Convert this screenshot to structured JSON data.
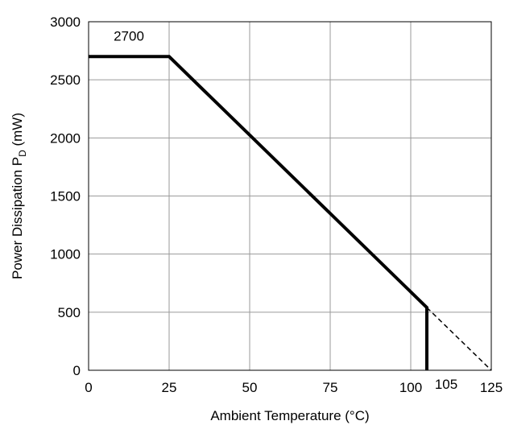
{
  "chart_data": {
    "type": "line",
    "title": "",
    "xlabel": "Ambient Temperature (°C)",
    "ylabel_main": "Power Dissipation P",
    "ylabel_sub": "D",
    "ylabel_unit": " (mW)",
    "xlim": [
      0,
      125
    ],
    "ylim": [
      0,
      3000
    ],
    "xticks": [
      0,
      25,
      50,
      75,
      100,
      125
    ],
    "yticks": [
      0,
      500,
      1000,
      1500,
      2000,
      2500,
      3000
    ],
    "grid": true,
    "legend": "none",
    "series": [
      {
        "style": "solid",
        "color": "#000000",
        "points": [
          [
            0,
            2700
          ],
          [
            25,
            2700
          ],
          [
            105,
            540
          ],
          [
            105,
            0
          ]
        ]
      },
      {
        "style": "dashed",
        "color": "#000000",
        "points": [
          [
            105,
            540
          ],
          [
            125,
            0
          ]
        ]
      }
    ],
    "annotations": [
      {
        "text": "2700",
        "x": 12.5,
        "y": 2700
      },
      {
        "text": "105",
        "x": 105,
        "y": 0
      }
    ]
  }
}
